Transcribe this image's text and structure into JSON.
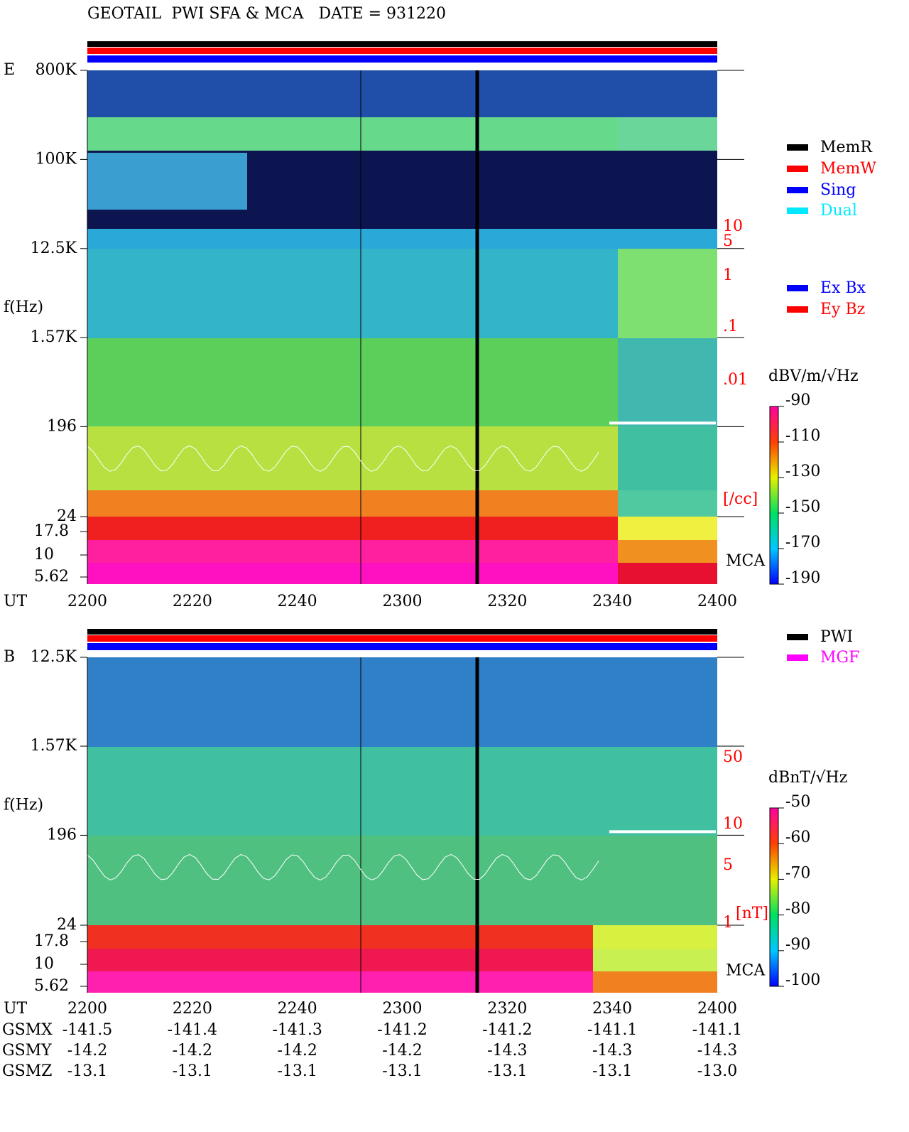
{
  "title": "GEOTAIL  PWI SFA & MCA   DATE = 931220",
  "panels": [
    {
      "label": "E",
      "y_label": "f(Hz)",
      "scale": "log",
      "ylim": [
        24,
        800000
      ],
      "yticks": [
        {
          "value": 800000,
          "label": "800K"
        },
        {
          "value": 100000,
          "label": "100K"
        },
        {
          "value": 12500,
          "label": "12.5K"
        },
        {
          "value": 1570,
          "label": "1.57K"
        },
        196,
        24
      ],
      "mca_ticks": [
        17.8,
        10,
        5.62
      ],
      "mca_label": "MCA",
      "x_label": "UT",
      "xticks": [
        "2200",
        "2220",
        "2240",
        "2300",
        "2320",
        "2340",
        "2400"
      ],
      "colorbar": {
        "unit": "dBV/m/√Hz",
        "lim": [
          -190,
          -90
        ],
        "ticks": [
          -90,
          -110,
          -130,
          -150,
          -170,
          -190
        ]
      },
      "density": {
        "labels": [
          "10",
          "5",
          "1",
          ".1",
          ".01"
        ],
        "unit": "[/cc]"
      }
    },
    {
      "label": "B",
      "y_label": "f(Hz)",
      "scale": "log",
      "ylim": [
        24,
        12500
      ],
      "yticks": [
        {
          "value": 12500,
          "label": "12.5K"
        },
        {
          "value": 1570,
          "label": "1.57K"
        },
        196,
        24
      ],
      "mca_ticks": [
        17.8,
        10,
        5.62
      ],
      "mca_label": "MCA",
      "x_label": "UT",
      "xticks": [
        "2200",
        "2220",
        "2240",
        "2300",
        "2320",
        "2340",
        "2400"
      ],
      "colorbar": {
        "unit": "dBnT/√Hz",
        "lim": [
          -100,
          -50
        ],
        "ticks": [
          -50,
          -60,
          -70,
          -80,
          -90,
          -100
        ]
      },
      "density": {
        "labels": [
          "50",
          "10",
          "5",
          "1"
        ],
        "unit": "[nT]"
      }
    }
  ],
  "legend_mode": [
    {
      "name": "MemR",
      "color": "#000000"
    },
    {
      "name": "MemW",
      "color": "#ff0000"
    },
    {
      "name": "Sing",
      "color": "#0000ff"
    },
    {
      "name": "Dual",
      "color": "#00e8ff"
    }
  ],
  "legend_component": [
    {
      "name": "Ex Bx",
      "color": "#0000ff"
    },
    {
      "name": "Ey Bz",
      "color": "#ff0000"
    }
  ],
  "legend_source": [
    {
      "name": "PWI",
      "color": "#000000"
    },
    {
      "name": "MGF",
      "color": "#ff00ff"
    }
  ],
  "orbit": [
    {
      "label": "GSMX",
      "values": [
        "-141.5",
        "-141.4",
        "-141.3",
        "-141.2",
        "-141.2",
        "-141.1",
        "-141.1"
      ]
    },
    {
      "label": "GSMY",
      "values": [
        "-14.2",
        "-14.2",
        "-14.2",
        "-14.2",
        "-14.3",
        "-14.3",
        "-14.3"
      ]
    },
    {
      "label": "GSMZ",
      "values": [
        "-13.1",
        "-13.1",
        "-13.1",
        "-13.1",
        "-13.1",
        "-13.1",
        "-13.0"
      ]
    }
  ]
}
